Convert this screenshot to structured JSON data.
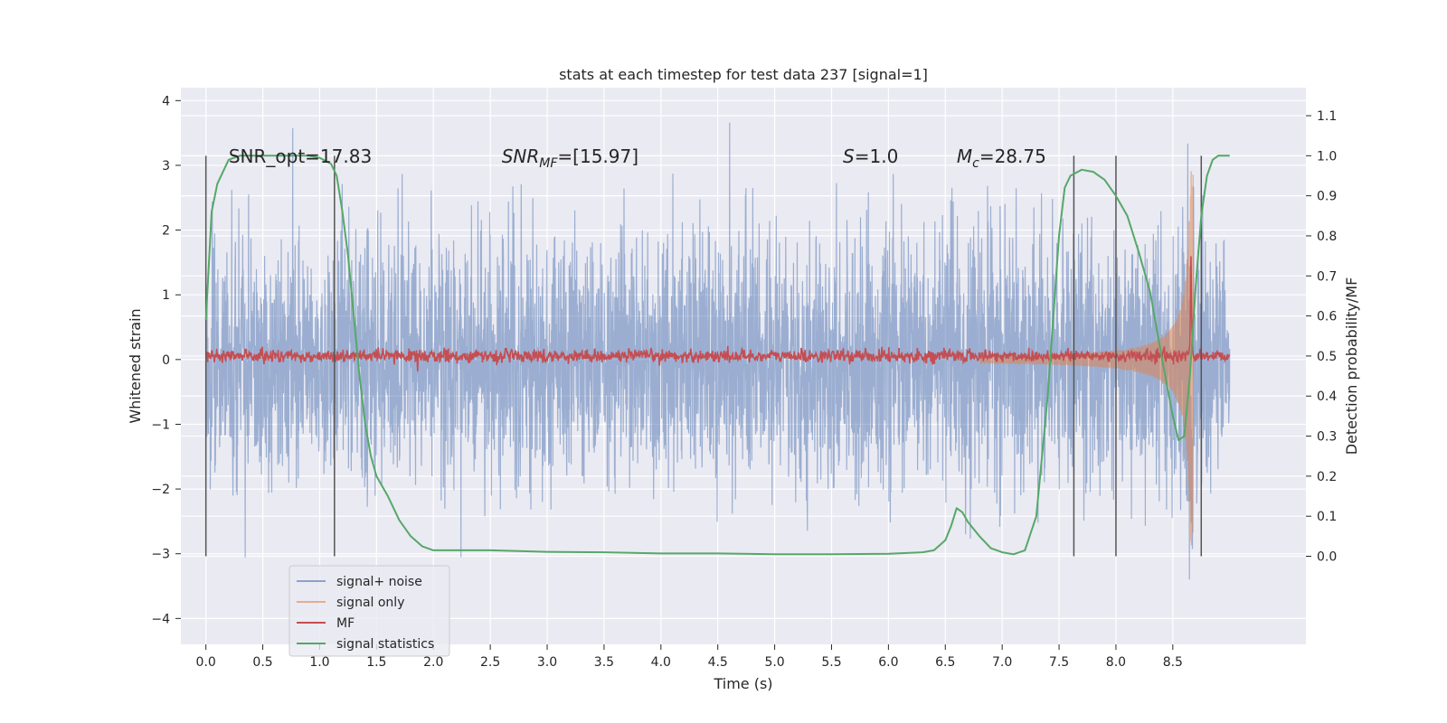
{
  "chart_data": {
    "type": "line",
    "title": "stats at each timestep for test data 237 [signal=1]",
    "xlabel": "Time (s)",
    "ylabel": "Whitened strain",
    "y2label": "Detection probability/MF",
    "xlim": [
      -0.22,
      9.67
    ],
    "ylim": [
      -4.4,
      4.2
    ],
    "y2lim": [
      -0.22,
      1.17
    ],
    "xticks": [
      0.0,
      0.5,
      1.0,
      1.5,
      2.0,
      2.5,
      3.0,
      3.5,
      4.0,
      4.5,
      5.0,
      5.5,
      6.0,
      6.5,
      7.0,
      7.5,
      8.0,
      8.5
    ],
    "xtick_labels": [
      "0.0",
      "0.5",
      "1.0",
      "1.5",
      "2.0",
      "2.5",
      "3.0",
      "3.5",
      "4.0",
      "4.5",
      "5.0",
      "5.5",
      "6.0",
      "6.5",
      "7.0",
      "7.5",
      "8.0",
      "8.5"
    ],
    "yticks": [
      -4,
      -3,
      -2,
      -1,
      0,
      1,
      2,
      3,
      4
    ],
    "ytick_labels": [
      "−4",
      "−3",
      "−2",
      "−1",
      "0",
      "1",
      "2",
      "3",
      "4"
    ],
    "y2ticks": [
      0.0,
      0.1,
      0.2,
      0.3,
      0.4,
      0.5,
      0.6,
      0.7,
      0.8,
      0.9,
      1.0,
      1.1
    ],
    "y2tick_labels": [
      "0.0",
      "0.1",
      "0.2",
      "0.3",
      "0.4",
      "0.5",
      "0.6",
      "0.7",
      "0.8",
      "0.9",
      "1.0",
      "1.1"
    ],
    "grid": true,
    "legend_position": "lower-left",
    "annotations": [
      {
        "text": "SNR_opt=17.83",
        "x": 0.2
      },
      {
        "text": "SNR_MF=[15.97]",
        "x": 2.6
      },
      {
        "text": "S=1.0",
        "x": 5.6
      },
      {
        "text": "M_c=28.75",
        "x": 6.6
      }
    ],
    "vertical_lines": [
      0.0,
      1.13,
      7.63,
      8.0,
      8.75
    ],
    "series": [
      {
        "name": "signal+ noise",
        "color": "#4c72b0",
        "axis": "left",
        "kind": "noise",
        "x_range": [
          0.0,
          9.0
        ],
        "sigma": 1.0,
        "typical_peak_max": 2.5,
        "typical_peak_min": -2.5
      },
      {
        "name": "signal only",
        "color": "#dd8452",
        "axis": "left",
        "kind": "chirp",
        "x_range": [
          0.0,
          8.68
        ],
        "peak_time": 8.66,
        "peak_amplitude": 3.3
      },
      {
        "name": "MF",
        "color": "#c44e52",
        "axis": "right",
        "kind": "mf",
        "x_range": [
          0.0,
          9.0
        ],
        "baseline": 0.5,
        "peak_time": 8.66,
        "peak_value": 0.75
      },
      {
        "name": "signal statistics",
        "color": "#55a868",
        "axis": "right",
        "kind": "line",
        "x": [
          0.0,
          0.05,
          0.1,
          0.2,
          0.3,
          0.5,
          0.7,
          0.8,
          0.9,
          1.0,
          1.1,
          1.15,
          1.2,
          1.25,
          1.3,
          1.35,
          1.4,
          1.45,
          1.5,
          1.6,
          1.7,
          1.8,
          1.9,
          2.0,
          2.5,
          3.0,
          3.5,
          4.0,
          4.5,
          5.0,
          5.5,
          6.0,
          6.3,
          6.4,
          6.5,
          6.55,
          6.6,
          6.65,
          6.7,
          6.8,
          6.9,
          7.0,
          7.1,
          7.2,
          7.3,
          7.4,
          7.5,
          7.55,
          7.6,
          7.7,
          7.8,
          7.9,
          8.0,
          8.1,
          8.2,
          8.3,
          8.4,
          8.5,
          8.55,
          8.6,
          8.65,
          8.7,
          8.75,
          8.8,
          8.85,
          8.9,
          8.95,
          9.0
        ],
        "y": [
          0.59,
          0.86,
          0.93,
          0.99,
          1.0,
          1.0,
          1.0,
          1.0,
          1.0,
          0.995,
          0.98,
          0.95,
          0.86,
          0.75,
          0.6,
          0.45,
          0.33,
          0.25,
          0.2,
          0.15,
          0.09,
          0.05,
          0.025,
          0.015,
          0.015,
          0.011,
          0.01,
          0.007,
          0.007,
          0.005,
          0.005,
          0.006,
          0.01,
          0.015,
          0.04,
          0.075,
          0.12,
          0.11,
          0.085,
          0.05,
          0.02,
          0.01,
          0.005,
          0.015,
          0.1,
          0.4,
          0.8,
          0.92,
          0.95,
          0.965,
          0.96,
          0.94,
          0.9,
          0.85,
          0.76,
          0.66,
          0.5,
          0.35,
          0.29,
          0.3,
          0.45,
          0.67,
          0.85,
          0.95,
          0.99,
          1.0,
          1.0,
          1.0
        ]
      }
    ]
  }
}
